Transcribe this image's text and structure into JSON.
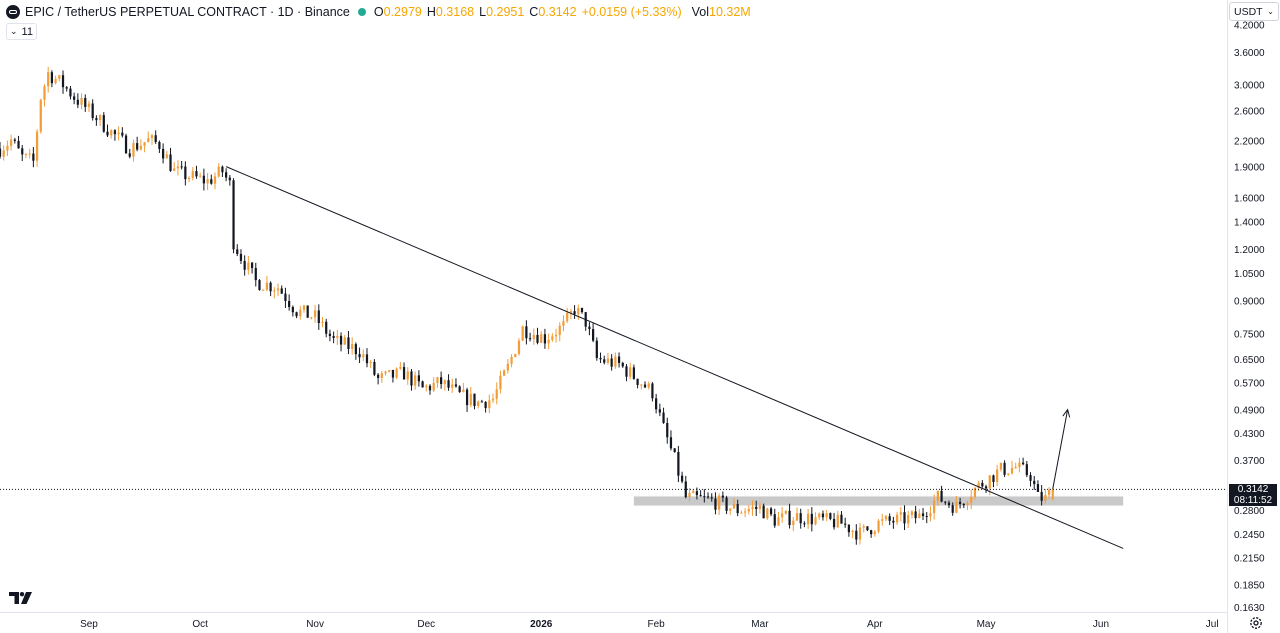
{
  "legend": {
    "title": "EPIC / TetherUS PERPETUAL CONTRACT · 1D · Binance",
    "open_label": "O",
    "open_value": "0.2979",
    "high_label": "H",
    "high_value": "0.3168",
    "low_label": "L",
    "low_value": "0.2951",
    "close_label": "C",
    "close_value": "0.3142",
    "change": "+0.0159 (+5.33%)",
    "vol_label": "Vol",
    "vol_value": "10.32M"
  },
  "indicator": {
    "count": "11"
  },
  "currency": {
    "label": "USDT"
  },
  "price_tag": {
    "price": "0.3142",
    "countdown": "08:11:52"
  },
  "colors": {
    "up": "#f29d38",
    "down": "#131722",
    "line": "#131722",
    "zone": "#c9c9c9",
    "accent": "#f7a600"
  },
  "icons": {
    "symbol": "epic-symbol-icon",
    "logo": "tradingview-logo-icon",
    "settings": "gear-icon",
    "status": "market-open-dot"
  },
  "chart_data": {
    "type": "candlestick",
    "scale": "log",
    "ylim": [
      0.163,
      4.2
    ],
    "y_ticks": [
      "3.6000",
      "3.0000",
      "2.6000",
      "2.2000",
      "1.9000",
      "1.6000",
      "1.4000",
      "1.2000",
      "1.0500",
      "0.9000",
      "0.7500",
      "0.6500",
      "0.5700",
      "0.4900",
      "0.4300",
      "0.3700",
      "0.2800",
      "0.2450",
      "0.2150",
      "0.1850",
      "0.1630"
    ],
    "x_ticks": [
      {
        "label": "Sep",
        "date": "2025-09-01",
        "bold": false
      },
      {
        "label": "Oct",
        "date": "2025-10-01",
        "bold": false
      },
      {
        "label": "Nov",
        "date": "2025-11-01",
        "bold": false
      },
      {
        "label": "Dec",
        "date": "2025-12-01",
        "bold": false
      },
      {
        "label": "2026",
        "date": "2026-01-01",
        "bold": true
      },
      {
        "label": "Feb",
        "date": "2026-02-01",
        "bold": false
      },
      {
        "label": "Mar",
        "date": "2026-03-01",
        "bold": false
      },
      {
        "label": "Apr",
        "date": "2026-04-01",
        "bold": false
      },
      {
        "label": "May",
        "date": "2026-05-01",
        "bold": false
      },
      {
        "label": "Jun",
        "date": "2026-06-01",
        "bold": false
      },
      {
        "label": "Jul",
        "date": "2026-07-01",
        "bold": false
      }
    ],
    "x_range": [
      "2025-08-08",
      "2026-07-05"
    ],
    "last_price": 0.3142,
    "anchors": [
      [
        "2025-08-08",
        2.1
      ],
      [
        "2025-08-11",
        2.2
      ],
      [
        "2025-08-14",
        2.0
      ],
      [
        "2025-08-17",
        1.95
      ],
      [
        "2025-08-19",
        2.8
      ],
      [
        "2025-08-21",
        3.2
      ],
      [
        "2025-08-25",
        3.0
      ],
      [
        "2025-08-28",
        2.8
      ],
      [
        "2025-09-03",
        2.5
      ],
      [
        "2025-09-07",
        2.3
      ],
      [
        "2025-09-12",
        2.1
      ],
      [
        "2025-09-17",
        2.2
      ],
      [
        "2025-09-20",
        2.15
      ],
      [
        "2025-09-24",
        1.85
      ],
      [
        "2025-09-28",
        1.8
      ],
      [
        "2025-10-03",
        1.75
      ],
      [
        "2025-10-07",
        1.85
      ],
      [
        "2025-10-09",
        1.72
      ],
      [
        "2025-10-10",
        1.25
      ],
      [
        "2025-10-12",
        1.15
      ],
      [
        "2025-10-16",
        1.0
      ],
      [
        "2025-10-22",
        0.97
      ],
      [
        "2025-10-27",
        0.85
      ],
      [
        "2025-11-01",
        0.82
      ],
      [
        "2025-11-06",
        0.72
      ],
      [
        "2025-11-13",
        0.68
      ],
      [
        "2025-11-18",
        0.58
      ],
      [
        "2025-11-25",
        0.6
      ],
      [
        "2025-11-30",
        0.55
      ],
      [
        "2025-12-05",
        0.57
      ],
      [
        "2025-12-10",
        0.53
      ],
      [
        "2025-12-15",
        0.51
      ],
      [
        "2025-12-19",
        0.52
      ],
      [
        "2025-12-23",
        0.62
      ],
      [
        "2025-12-27",
        0.77
      ],
      [
        "2026-01-02",
        0.73
      ],
      [
        "2026-01-07",
        0.78
      ],
      [
        "2026-01-10",
        0.86
      ],
      [
        "2026-01-13",
        0.8
      ],
      [
        "2026-01-16",
        0.65
      ],
      [
        "2026-01-22",
        0.63
      ],
      [
        "2026-01-27",
        0.58
      ],
      [
        "2026-01-31",
        0.54
      ],
      [
        "2026-02-03",
        0.44
      ],
      [
        "2026-02-06",
        0.37
      ],
      [
        "2026-02-09",
        0.3
      ],
      [
        "2026-02-16",
        0.295
      ],
      [
        "2026-02-23",
        0.28
      ],
      [
        "2026-03-01",
        0.283
      ],
      [
        "2026-03-05",
        0.265
      ],
      [
        "2026-03-11",
        0.27
      ],
      [
        "2026-03-17",
        0.265
      ],
      [
        "2026-03-23",
        0.26
      ],
      [
        "2026-03-28",
        0.245
      ],
      [
        "2026-04-02",
        0.26
      ],
      [
        "2026-04-08",
        0.265
      ],
      [
        "2026-04-13",
        0.27
      ],
      [
        "2026-04-18",
        0.3
      ],
      [
        "2026-04-23",
        0.285
      ],
      [
        "2026-04-27",
        0.31
      ],
      [
        "2026-05-01",
        0.33
      ],
      [
        "2026-05-05",
        0.35
      ],
      [
        "2026-05-09",
        0.355
      ],
      [
        "2026-05-13",
        0.34
      ],
      [
        "2026-05-15",
        0.3
      ],
      [
        "2026-05-17",
        0.298
      ],
      [
        "2026-05-19",
        0.3142
      ]
    ],
    "trendline": {
      "start": [
        "2025-10-08",
        1.9
      ],
      "end": [
        "2026-06-07",
        0.226
      ]
    },
    "support_zone": {
      "from": "2026-01-26",
      "to": "2026-06-07",
      "top": 0.302,
      "bottom": 0.287
    },
    "arrow": {
      "start": [
        "2026-05-19",
        0.315
      ],
      "end": [
        "2026-05-23",
        0.49
      ]
    }
  }
}
